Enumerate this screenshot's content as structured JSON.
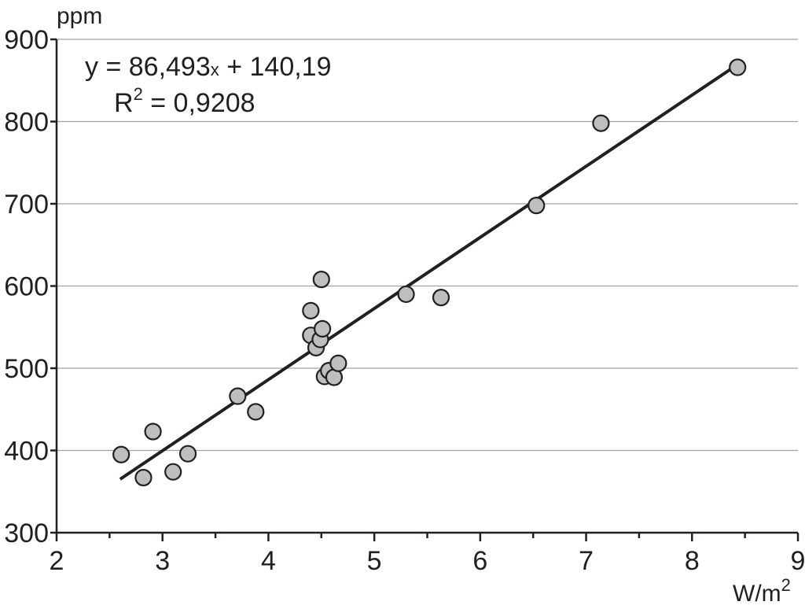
{
  "chart_data": {
    "type": "scatter",
    "ylabel": "ppm",
    "xlabel_base": "W/m",
    "xlabel_sup": "2",
    "xlim": [
      2,
      9
    ],
    "ylim": [
      300,
      900
    ],
    "x_ticks": [
      2,
      3,
      4,
      5,
      6,
      7,
      8,
      9
    ],
    "y_ticks": [
      300,
      400,
      500,
      600,
      700,
      800,
      900
    ],
    "grid": "horizontal",
    "points": [
      {
        "x": 2.61,
        "y": 395
      },
      {
        "x": 2.82,
        "y": 367
      },
      {
        "x": 2.91,
        "y": 423
      },
      {
        "x": 3.1,
        "y": 374
      },
      {
        "x": 3.24,
        "y": 396
      },
      {
        "x": 3.71,
        "y": 466
      },
      {
        "x": 3.88,
        "y": 447
      },
      {
        "x": 4.4,
        "y": 570
      },
      {
        "x": 4.4,
        "y": 540
      },
      {
        "x": 4.45,
        "y": 525
      },
      {
        "x": 4.49,
        "y": 535
      },
      {
        "x": 4.5,
        "y": 608
      },
      {
        "x": 4.51,
        "y": 548
      },
      {
        "x": 4.53,
        "y": 490
      },
      {
        "x": 4.57,
        "y": 497
      },
      {
        "x": 4.62,
        "y": 489
      },
      {
        "x": 4.66,
        "y": 506
      },
      {
        "x": 5.3,
        "y": 590
      },
      {
        "x": 5.63,
        "y": 586
      },
      {
        "x": 6.53,
        "y": 698
      },
      {
        "x": 7.14,
        "y": 798
      },
      {
        "x": 8.43,
        "y": 866
      }
    ],
    "trendline": {
      "slope": 86.493,
      "intercept": 140.19,
      "x_start": 2.6,
      "x_end": 8.4
    },
    "equation": {
      "prefix": "y = 86,493",
      "var": "x",
      "suffix": " + 140,19"
    },
    "r2": {
      "base": "R",
      "sup": "2",
      "value": " = 0,9208"
    },
    "colors": {
      "point_fill": "#bebebe",
      "point_stroke": "#231f20",
      "line": "#231f20",
      "grid": "#a0a0a0",
      "axis": "#231f20"
    }
  }
}
